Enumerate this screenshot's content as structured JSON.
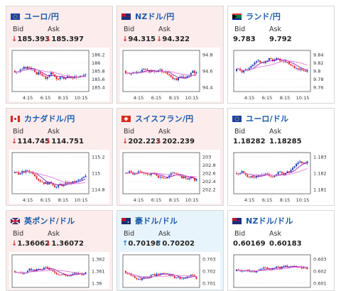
{
  "labels": {
    "bid": "Bid",
    "ask": "Ask"
  },
  "cards": [
    {
      "pair": "ユーロ/円",
      "flag": "eu-jp-flag-icon",
      "trend": "down",
      "bid": "185.393",
      "ask": "185.397",
      "show_arrow": true,
      "yticks": [
        "186.2",
        "186",
        "185.8",
        "185.6",
        "185.4"
      ],
      "xticks": [
        "4:15",
        "6:15",
        "8:15",
        "10:15"
      ]
    },
    {
      "pair": "NZドル/円",
      "flag": "nz-jp-flag-icon",
      "trend": "down",
      "bid": "94.315",
      "ask": "94.322",
      "show_arrow": true,
      "yticks": [
        "94.8",
        "94.6",
        "94.4"
      ],
      "xticks": [
        "4:15",
        "6:15",
        "8:15",
        "10:15"
      ]
    },
    {
      "pair": "ランド/円",
      "flag": "za-jp-flag-icon",
      "trend": "flat",
      "bid": "9.783",
      "ask": "9.792",
      "show_arrow": false,
      "yticks": [
        "9.84",
        "9.82",
        "9.8",
        "9.78",
        "9.76"
      ],
      "xticks": [
        "4:15",
        "6:15",
        "8:15",
        "10:15"
      ]
    },
    {
      "pair": "カナダドル/円",
      "flag": "ca-jp-flag-icon",
      "trend": "down",
      "bid": "114.745",
      "ask": "114.751",
      "show_arrow": true,
      "yticks": [
        "115.2",
        "115",
        "114.8"
      ],
      "xticks": [
        "4:15",
        "6:15",
        "8:15",
        "10:15"
      ]
    },
    {
      "pair": "スイスフラン/円",
      "flag": "ch-jp-flag-icon",
      "trend": "down",
      "bid": "202.223",
      "ask": "202.239",
      "show_arrow": true,
      "yticks": [
        "203",
        "202.8",
        "202.6",
        "202.4",
        "202.2"
      ],
      "xticks": [
        "4:15",
        "6:15",
        "8:15",
        "10:15"
      ]
    },
    {
      "pair": "ユーロ/ドル",
      "flag": "eu-us-flag-icon",
      "trend": "flat",
      "bid": "1.18282",
      "ask": "1.18285",
      "show_arrow": false,
      "yticks": [
        "1.183",
        "1.182",
        "1.181"
      ],
      "xticks": [
        "4:15",
        "6:15",
        "8:15",
        "10:15"
      ]
    },
    {
      "pair": "英ポンド/ドル",
      "flag": "gb-us-flag-icon",
      "trend": "down",
      "bid": "1.36062",
      "ask": "1.36072",
      "show_arrow": true,
      "yticks": [
        "1.362",
        "1.361",
        "1.36"
      ],
      "xticks": []
    },
    {
      "pair": "豪ドル/ドル",
      "flag": "au-us-flag-icon",
      "trend": "up",
      "bid": "0.70198",
      "ask": "0.70202",
      "show_arrow": true,
      "yticks": [
        "0.703",
        "0.702",
        "0.701"
      ],
      "xticks": []
    },
    {
      "pair": "NZドル/ドル",
      "flag": "nz-us-flag-icon",
      "trend": "flat",
      "bid": "0.60169",
      "ask": "0.60183",
      "show_arrow": false,
      "yticks": [
        "0.603",
        "0.602",
        "0.601"
      ],
      "xticks": []
    }
  ],
  "colors": {
    "up_candle": "#1a3fbf",
    "down_candle": "#e0242a",
    "ma_short": "#9b1bb0",
    "ma_long": "#e07ad8",
    "pair_text": "#1a5aa8"
  }
}
